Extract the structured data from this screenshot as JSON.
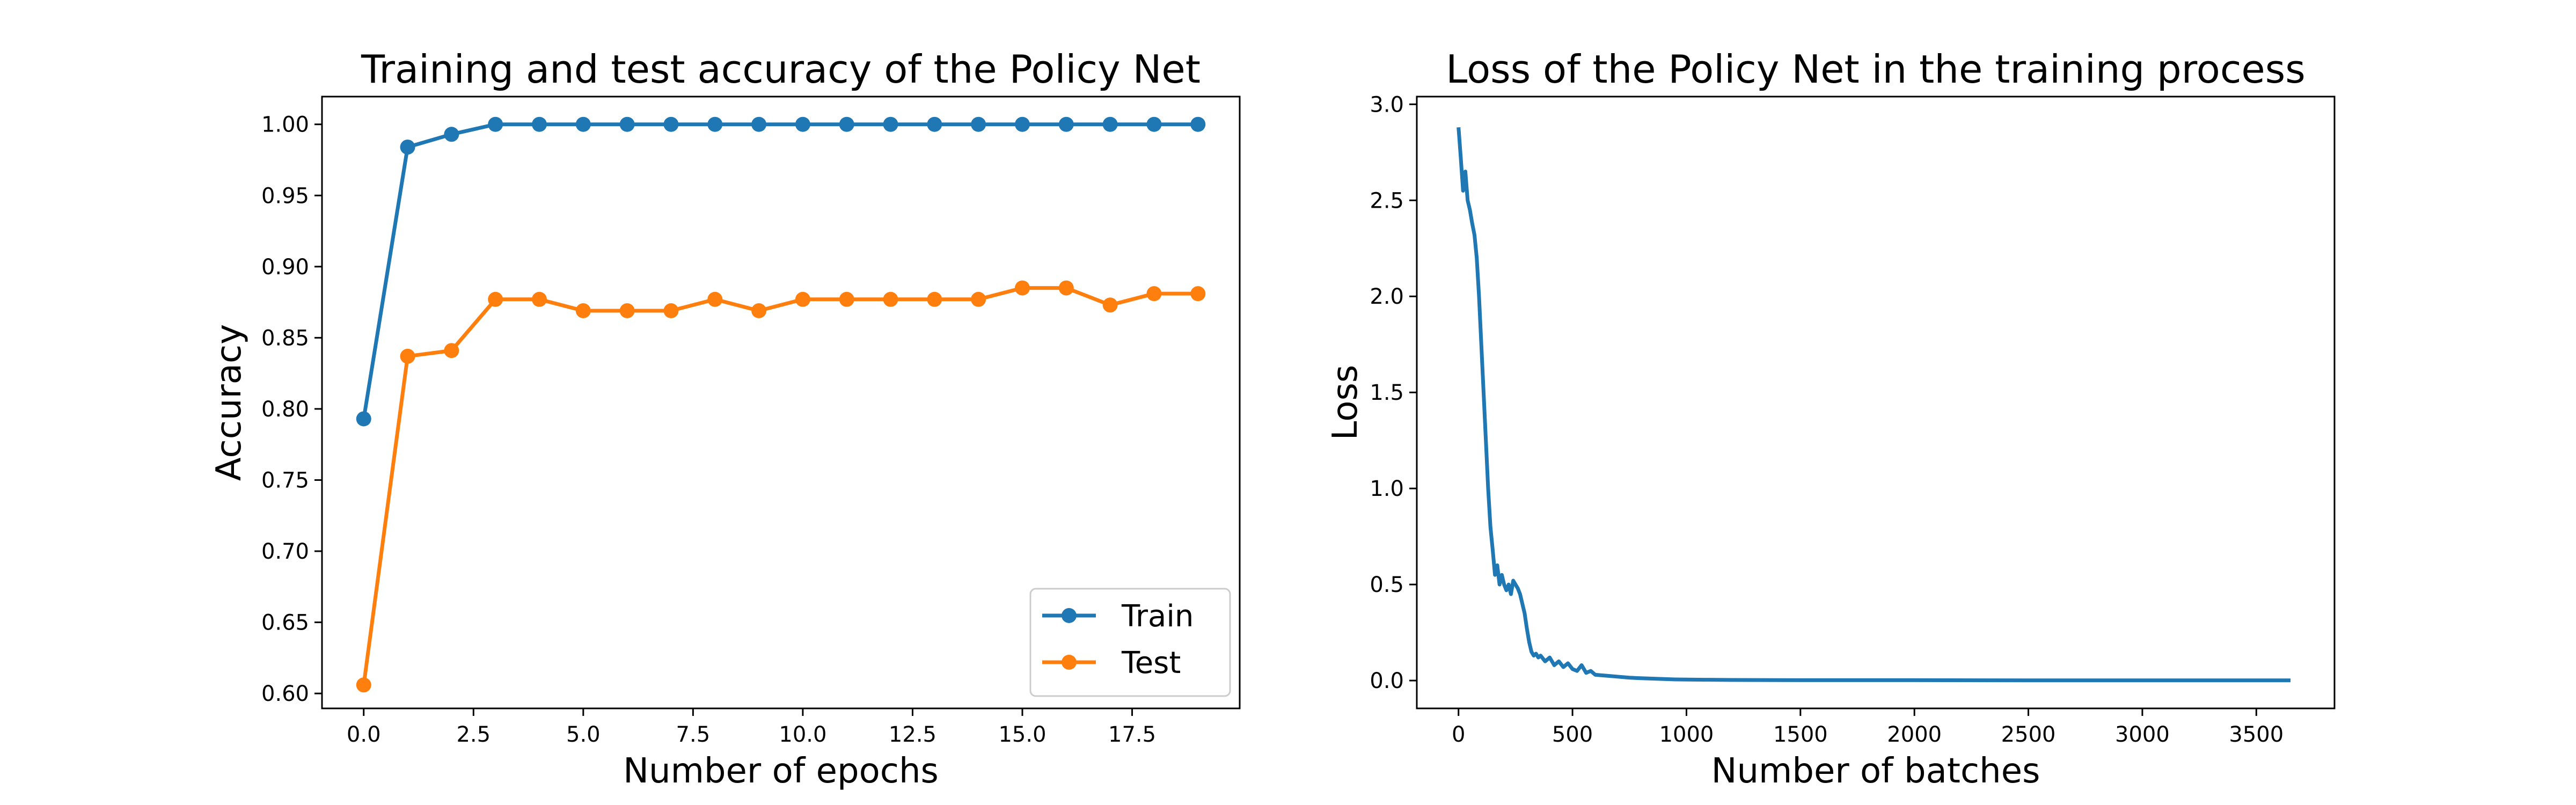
{
  "colors": {
    "train": "#1f77b4",
    "test": "#ff7f0e",
    "loss": "#1f77b4",
    "axes": "#000000",
    "legend_border": "#cccccc"
  },
  "chart_data": [
    {
      "type": "line",
      "title": "Training and test accuracy of the Policy Net",
      "xlabel": "Number of epochs",
      "ylabel": "Accuracy",
      "xlim": [
        -0.95,
        19.95
      ],
      "ylim": [
        0.5895,
        1.0195
      ],
      "xticks": [
        0.0,
        2.5,
        5.0,
        7.5,
        10.0,
        12.5,
        15.0,
        17.5
      ],
      "xtick_labels": [
        "0.0",
        "2.5",
        "5.0",
        "7.5",
        "10.0",
        "12.5",
        "15.0",
        "17.5"
      ],
      "yticks": [
        0.6,
        0.65,
        0.7,
        0.75,
        0.8,
        0.85,
        0.9,
        0.95,
        1.0
      ],
      "ytick_labels": [
        "0.60",
        "0.65",
        "0.70",
        "0.75",
        "0.80",
        "0.85",
        "0.90",
        "0.95",
        "1.00"
      ],
      "grid": false,
      "legend": "lower-right",
      "x": [
        0,
        1,
        2,
        3,
        4,
        5,
        6,
        7,
        8,
        9,
        10,
        11,
        12,
        13,
        14,
        15,
        16,
        17,
        18,
        19
      ],
      "series": [
        {
          "name": "Train",
          "values": [
            0.793,
            0.984,
            0.993,
            1.0,
            1.0,
            1.0,
            1.0,
            1.0,
            1.0,
            1.0,
            1.0,
            1.0,
            1.0,
            1.0,
            1.0,
            1.0,
            1.0,
            1.0,
            1.0,
            1.0
          ]
        },
        {
          "name": "Test",
          "values": [
            0.606,
            0.837,
            0.841,
            0.877,
            0.877,
            0.869,
            0.869,
            0.869,
            0.877,
            0.869,
            0.877,
            0.877,
            0.877,
            0.877,
            0.877,
            0.885,
            0.885,
            0.873,
            0.881,
            0.881
          ]
        }
      ]
    },
    {
      "type": "line",
      "title": "Loss of the Policy Net in the training process",
      "xlabel": "Number of batches",
      "ylabel": "Loss",
      "xlim": [
        -183,
        3843
      ],
      "ylim": [
        -0.145,
        3.04
      ],
      "xticks": [
        0,
        500,
        1000,
        1500,
        2000,
        2500,
        3000,
        3500
      ],
      "xtick_labels": [
        "0",
        "500",
        "1000",
        "1500",
        "2000",
        "2500",
        "3000",
        "3500"
      ],
      "yticks": [
        0.0,
        0.5,
        1.0,
        1.5,
        2.0,
        2.5,
        3.0
      ],
      "ytick_labels": [
        "0.0",
        "0.5",
        "1.0",
        "1.5",
        "2.0",
        "2.5",
        "3.0"
      ],
      "grid": false,
      "series": [
        {
          "x": [
            0,
            10,
            20,
            30,
            40,
            50,
            60,
            70,
            80,
            90,
            100,
            110,
            120,
            130,
            140,
            150,
            160,
            170,
            180,
            190,
            200,
            210,
            220,
            230,
            240,
            250,
            260,
            270,
            280,
            290,
            300,
            310,
            320,
            330,
            340,
            350,
            360,
            380,
            400,
            420,
            440,
            460,
            480,
            500,
            520,
            540,
            560,
            580,
            600,
            650,
            700,
            750,
            800,
            850,
            900,
            950,
            1000,
            1100,
            1200,
            1500,
            2000,
            2500,
            3000,
            3500,
            3650
          ],
          "values": [
            2.88,
            2.72,
            2.55,
            2.65,
            2.5,
            2.45,
            2.38,
            2.32,
            2.2,
            2.0,
            1.75,
            1.5,
            1.25,
            1.0,
            0.8,
            0.68,
            0.55,
            0.6,
            0.5,
            0.55,
            0.5,
            0.47,
            0.5,
            0.45,
            0.52,
            0.5,
            0.48,
            0.45,
            0.4,
            0.35,
            0.27,
            0.2,
            0.15,
            0.13,
            0.14,
            0.12,
            0.13,
            0.1,
            0.12,
            0.08,
            0.1,
            0.07,
            0.09,
            0.06,
            0.05,
            0.08,
            0.04,
            0.05,
            0.03,
            0.025,
            0.02,
            0.015,
            0.012,
            0.01,
            0.008,
            0.006,
            0.005,
            0.004,
            0.003,
            0.002,
            0.002,
            0.001,
            0.001,
            0.001,
            0.001
          ]
        }
      ]
    }
  ]
}
